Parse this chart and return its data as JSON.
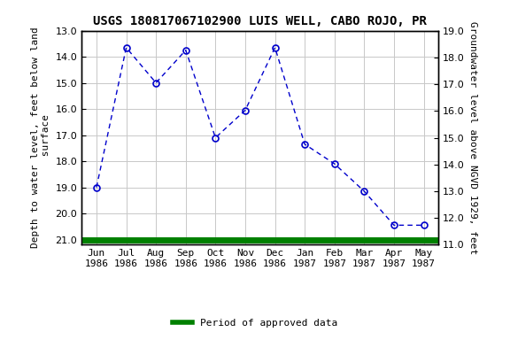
{
  "title": "USGS 180817067102900 LUIS WELL, CABO ROJO, PR",
  "ylabel_left": "Depth to water level, feet below land\n surface",
  "ylabel_right": "Groundwater level above NGVD 1929, feet",
  "xlabel_labels": [
    "Jun\n1986",
    "Jul\n1986",
    "Aug\n1986",
    "Sep\n1986",
    "Oct\n1986",
    "Nov\n1986",
    "Dec\n1986",
    "Jan\n1987",
    "Feb\n1987",
    "Mar\n1987",
    "Apr\n1987",
    "May\n1987"
  ],
  "x_positions": [
    0,
    1,
    2,
    3,
    4,
    5,
    6,
    7,
    8,
    9,
    10,
    11
  ],
  "y_depth": [
    19.0,
    13.65,
    15.0,
    13.75,
    17.1,
    16.05,
    13.65,
    17.35,
    18.1,
    19.15,
    20.45,
    20.45
  ],
  "ylim_left": [
    21.2,
    13.0
  ],
  "ylim_right": [
    11.0,
    19.0
  ],
  "yticks_left": [
    13.0,
    14.0,
    15.0,
    16.0,
    17.0,
    18.0,
    19.0,
    20.0,
    21.0
  ],
  "yticks_right": [
    11.0,
    12.0,
    13.0,
    14.0,
    15.0,
    16.0,
    17.0,
    18.0,
    19.0
  ],
  "grid_color": "#c8c8c8",
  "bg_color": "#ffffff",
  "line_color": "#0000cc",
  "marker_color": "#0000cc",
  "approved_color": "#008000",
  "legend_label": "Period of approved data",
  "title_fontsize": 10,
  "label_fontsize": 8,
  "tick_fontsize": 8
}
